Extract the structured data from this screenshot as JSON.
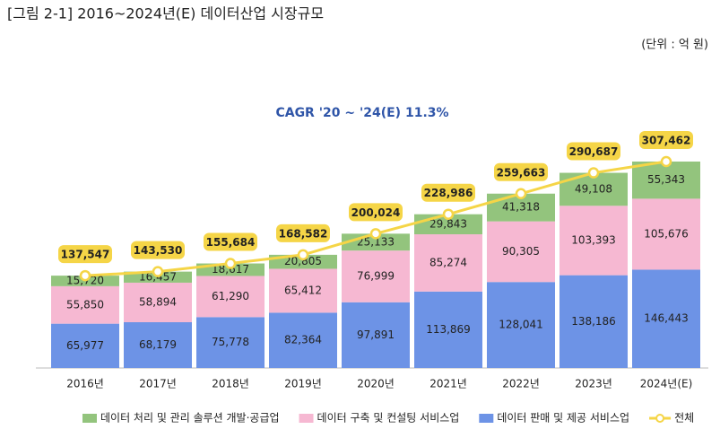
{
  "chart_data": {
    "type": "bar",
    "stacked": true,
    "title": "[그림 2-1] 2016~2024년(E) 데이터산업 시장규모",
    "subtitle": "(단위 : 억 원)",
    "annotation": "CAGR '20 ~ '24(E) 11.3%",
    "categories": [
      "2016년",
      "2017년",
      "2018년",
      "2019년",
      "2020년",
      "2021년",
      "2022년",
      "2023년",
      "2024년(E)"
    ],
    "series": [
      {
        "name": "데이터 처리 및 관리 솔루션 개발·공급업",
        "color": "#93c47d",
        "label_color": "#333333",
        "values": [
          15720,
          16457,
          18617,
          20805,
          25133,
          29843,
          41318,
          49108,
          55343
        ],
        "value_labels": [
          "15,720",
          "16,457",
          "18,617",
          "20,805",
          "25,133",
          "29,843",
          "41,318",
          "49,108",
          "55,343"
        ]
      },
      {
        "name": "데이터 구축 및 컨설팅 서비스업",
        "color": "#f6b8d2",
        "label_color": "#333333",
        "values": [
          55850,
          58894,
          61290,
          65412,
          76999,
          85274,
          90305,
          103393,
          105676
        ],
        "value_labels": [
          "55,850",
          "58,894",
          "61,290",
          "65,412",
          "76,999",
          "85,274",
          "90,305",
          "103,393",
          "105,676"
        ]
      },
      {
        "name": "데이터 판매 및 제공 서비스업",
        "color": "#6d93e6",
        "label_color": "#ffffff",
        "values": [
          65977,
          68179,
          75778,
          82364,
          97891,
          113869,
          128041,
          138186,
          146443
        ],
        "value_labels": [
          "65,977",
          "68,179",
          "75,778",
          "82,364",
          "97,891",
          "113,869",
          "128,041",
          "138,186",
          "146,443"
        ]
      },
      {
        "name": "전체",
        "type": "line",
        "color": "#f5d547",
        "values": [
          137547,
          143530,
          155684,
          168582,
          200024,
          228986,
          259663,
          290687,
          307462
        ],
        "value_labels": [
          "137,547",
          "143,530",
          "155,684",
          "168,582",
          "200,024",
          "228,986",
          "259,663",
          "290,687",
          "307,462"
        ]
      }
    ]
  }
}
